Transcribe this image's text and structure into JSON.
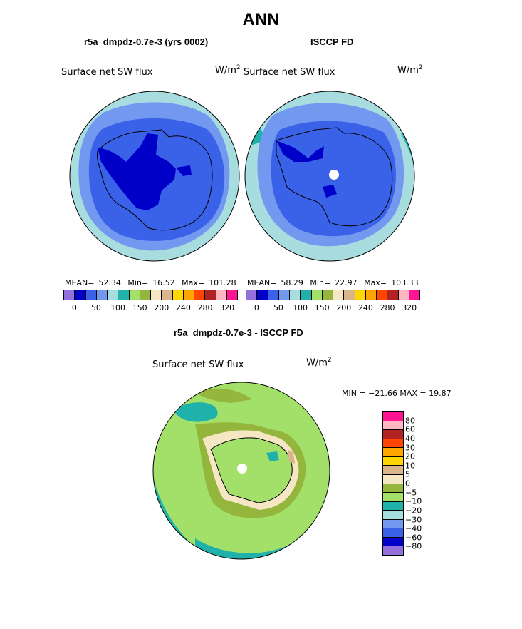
{
  "title": "ANN",
  "panels": {
    "left": {
      "title": "r5a_dmpdz-0.7e-3 (yrs 0002)",
      "field": "Surface net SW flux",
      "units_base": "W/m",
      "units_exp": "2",
      "mean_label": "MEAN=",
      "mean": "52.34",
      "min_label": "Min=",
      "min": "16.52",
      "max_label": "Max=",
      "max": "101.28"
    },
    "right": {
      "title": "ISCCP FD",
      "field": "Surface net SW flux",
      "units_base": "W/m",
      "units_exp": "2",
      "mean_label": "MEAN=",
      "mean": "58.29",
      "min_label": "Min=",
      "min": "22.97",
      "max_label": "Max=",
      "max": "103.33"
    },
    "diff": {
      "title": "r5a_dmpdz-0.7e-3 - ISCCP FD",
      "field": "Surface net SW flux",
      "units_base": "W/m",
      "units_exp": "2",
      "minmax_text": "MIN = −21.66 MAX =   19.87"
    }
  },
  "colorbar_top": {
    "colors": [
      "#9370db",
      "#0000c8",
      "#3a62e8",
      "#7398f0",
      "#a8dde0",
      "#20b2aa",
      "#a2e06a",
      "#94b63c",
      "#f5e6c4",
      "#dab48a",
      "#ffd700",
      "#ffa500",
      "#ff4500",
      "#b22222",
      "#ffb6c1",
      "#ff1493"
    ],
    "tick_labels": [
      "0",
      "50",
      "100",
      "150",
      "200",
      "240",
      "280",
      "320"
    ]
  },
  "colorbar_diff": {
    "colors": [
      "#ff1493",
      "#ffb6c1",
      "#b22222",
      "#ff4500",
      "#ffa500",
      "#ffd700",
      "#dab48a",
      "#f5e6c4",
      "#94b63c",
      "#a2e06a",
      "#20b2aa",
      "#a8dde0",
      "#7398f0",
      "#3a62e8",
      "#0000c8",
      "#9370db"
    ],
    "tick_labels": [
      "80",
      "60",
      "40",
      "30",
      "20",
      "10",
      "5",
      "0",
      "−5",
      "−10",
      "−20",
      "−30",
      "−40",
      "−60",
      "−80"
    ]
  },
  "chart_data": [
    {
      "type": "heatmap",
      "title": "r5a_dmpdz-0.7e-3 (yrs 0002)",
      "variable": "Surface net SW flux",
      "units": "W/m2",
      "projection": "south polar stereographic",
      "stats": {
        "mean": 52.34,
        "min": 16.52,
        "max": 101.28
      },
      "contour_levels": [
        0,
        25,
        50,
        75,
        100,
        125,
        150,
        175,
        200,
        220,
        240,
        260,
        280,
        300,
        320
      ]
    },
    {
      "type": "heatmap",
      "title": "ISCCP FD",
      "variable": "Surface net SW flux",
      "units": "W/m2",
      "projection": "south polar stereographic",
      "stats": {
        "mean": 58.29,
        "min": 22.97,
        "max": 103.33
      },
      "contour_levels": [
        0,
        25,
        50,
        75,
        100,
        125,
        150,
        175,
        200,
        220,
        240,
        260,
        280,
        300,
        320
      ]
    },
    {
      "type": "heatmap",
      "title": "r5a_dmpdz-0.7e-3 - ISCCP FD",
      "variable": "Surface net SW flux",
      "units": "W/m2",
      "projection": "south polar stereographic",
      "stats": {
        "min": -21.66,
        "max": 19.87
      },
      "contour_levels": [
        -80,
        -60,
        -40,
        -30,
        -20,
        -10,
        -5,
        0,
        5,
        10,
        20,
        30,
        40,
        60,
        80
      ]
    }
  ]
}
